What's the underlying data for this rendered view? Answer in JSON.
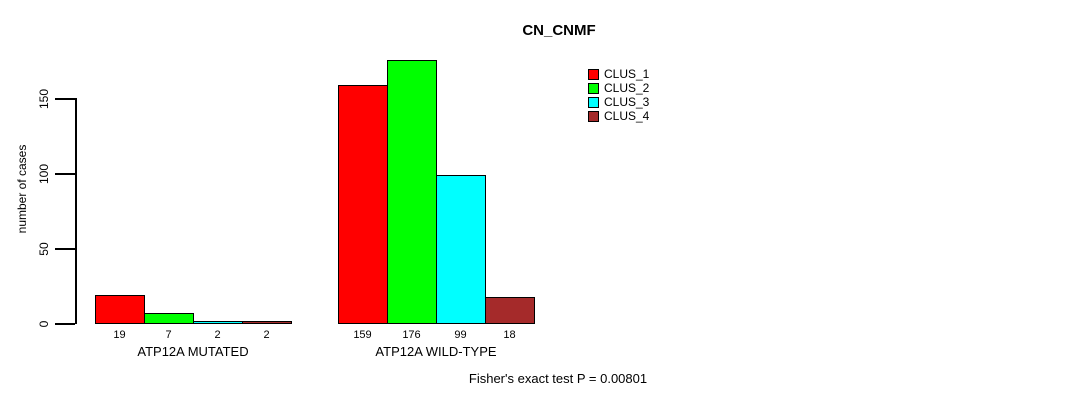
{
  "chart_data": {
    "type": "bar",
    "title": "CN_CNMF",
    "ylabel": "number of cases",
    "xlabel": "",
    "categories": [
      "ATP12A MUTATED",
      "ATP12A WILD-TYPE"
    ],
    "series": [
      {
        "name": "CLUS_1",
        "color": "#ff0000",
        "values": [
          19,
          159
        ]
      },
      {
        "name": "CLUS_2",
        "color": "#00ff00",
        "values": [
          7,
          176
        ]
      },
      {
        "name": "CLUS_3",
        "color": "#00ffff",
        "values": [
          2,
          99
        ]
      },
      {
        "name": "CLUS_4",
        "color": "#a52a2a",
        "values": [
          2,
          18
        ]
      }
    ],
    "y_ticks": [
      0,
      50,
      100,
      150
    ],
    "ylim": [
      0,
      185
    ],
    "grid": false,
    "legend_position": "top-right",
    "show_value_labels": true,
    "annotation": "Fisher's exact test P = 0.00801"
  }
}
